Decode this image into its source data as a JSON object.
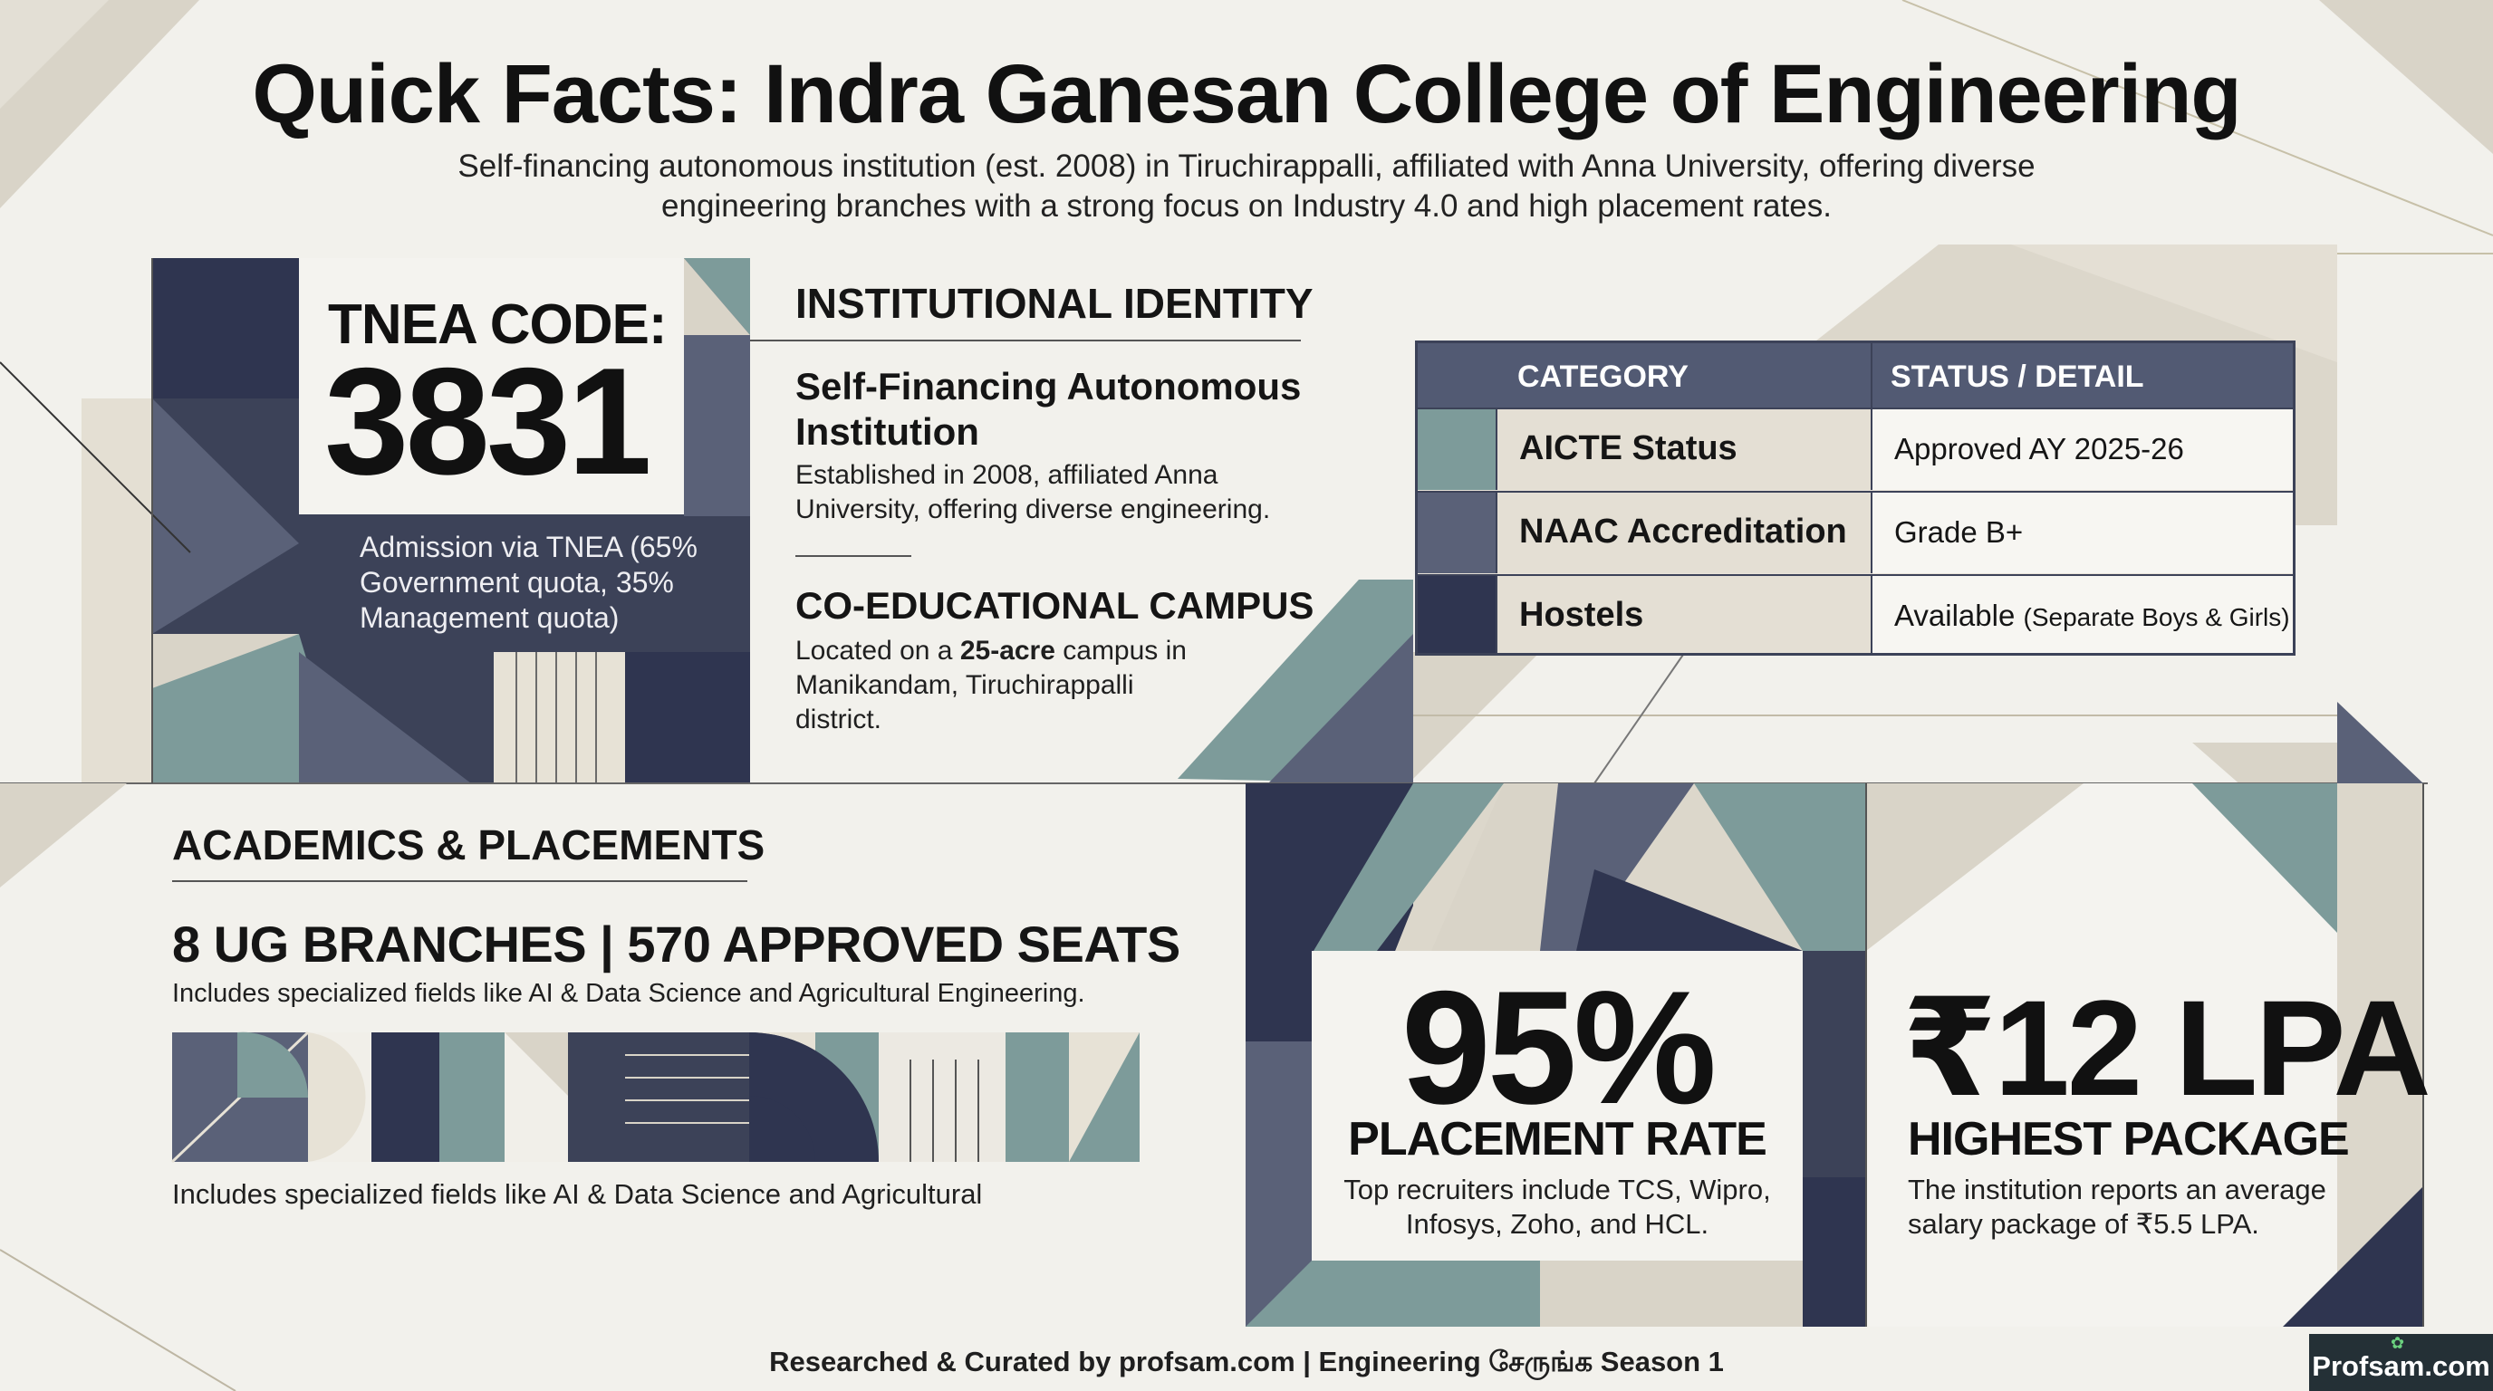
{
  "header": {
    "title": "Quick Facts: Indra Ganesan College of Engineering",
    "subtitle": "Self-financing autonomous institution (est. 2008) in Tiruchirappalli, affiliated with Anna University, offering diverse engineering branches with a strong focus on Industry 4.0 and high placement rates."
  },
  "tnea": {
    "label": "TNEA CODE:",
    "code": "3831",
    "note": "Admission via TNEA (65% Government quota, 35% Management quota)"
  },
  "identity": {
    "heading": "INSTITUTIONAL IDENTITY",
    "block1_title": "Self-Financing Autonomous Institution",
    "block1_text": "Established in 2008, affiliated Anna University, offering diverse engineering.",
    "block2_title": "CO-EDUCATIONAL CAMPUS",
    "block2_text_a": "Located on a ",
    "block2_text_bold": "25-acre",
    "block2_text_b": " campus in Manikandam, Tiruchirappalli district."
  },
  "status_table": {
    "headers": [
      "CATEGORY",
      "STATUS / DETAIL"
    ],
    "rows": [
      {
        "category": "AICTE Status",
        "detail": "Approved AY 2025-26",
        "detail_small": "",
        "swatch": "#7d9b9a"
      },
      {
        "category": "NAAC Accreditation",
        "detail": "Grade B+",
        "detail_small": "",
        "swatch": "#5a6178"
      },
      {
        "category": "Hostels",
        "detail": "Available",
        "detail_small": "(Separate Boys & Girls)",
        "swatch": "#2f3550"
      }
    ]
  },
  "academics": {
    "heading": "ACADEMICS & PLACEMENTS",
    "summary": "8 UG BRANCHES | 570 APPROVED SEATS",
    "desc1": "Includes specialized fields like AI & Data Science and Agricultural Engineering.",
    "desc2": "Includes specialized fields like AI & Data Science and Agricultural"
  },
  "placement": {
    "value": "95%",
    "label": "PLACEMENT RATE",
    "desc": "Top recruiters include TCS, Wipro, Infosys, Zoho, and HCL."
  },
  "package": {
    "value": "₹12 LPA",
    "label": "HIGHEST PACKAGE",
    "desc": "The institution reports an average salary package of ₹5.5 LPA."
  },
  "footer": {
    "credit": "Researched & Curated by profsam.com | Engineering சேருங்க Season 1",
    "logo": "Profsam.com"
  },
  "colors": {
    "navy": "#2f3550",
    "slate": "#5a6178",
    "teal": "#7d9b9a",
    "beige": "#d9d4c8",
    "paper": "#f2f1ec"
  }
}
